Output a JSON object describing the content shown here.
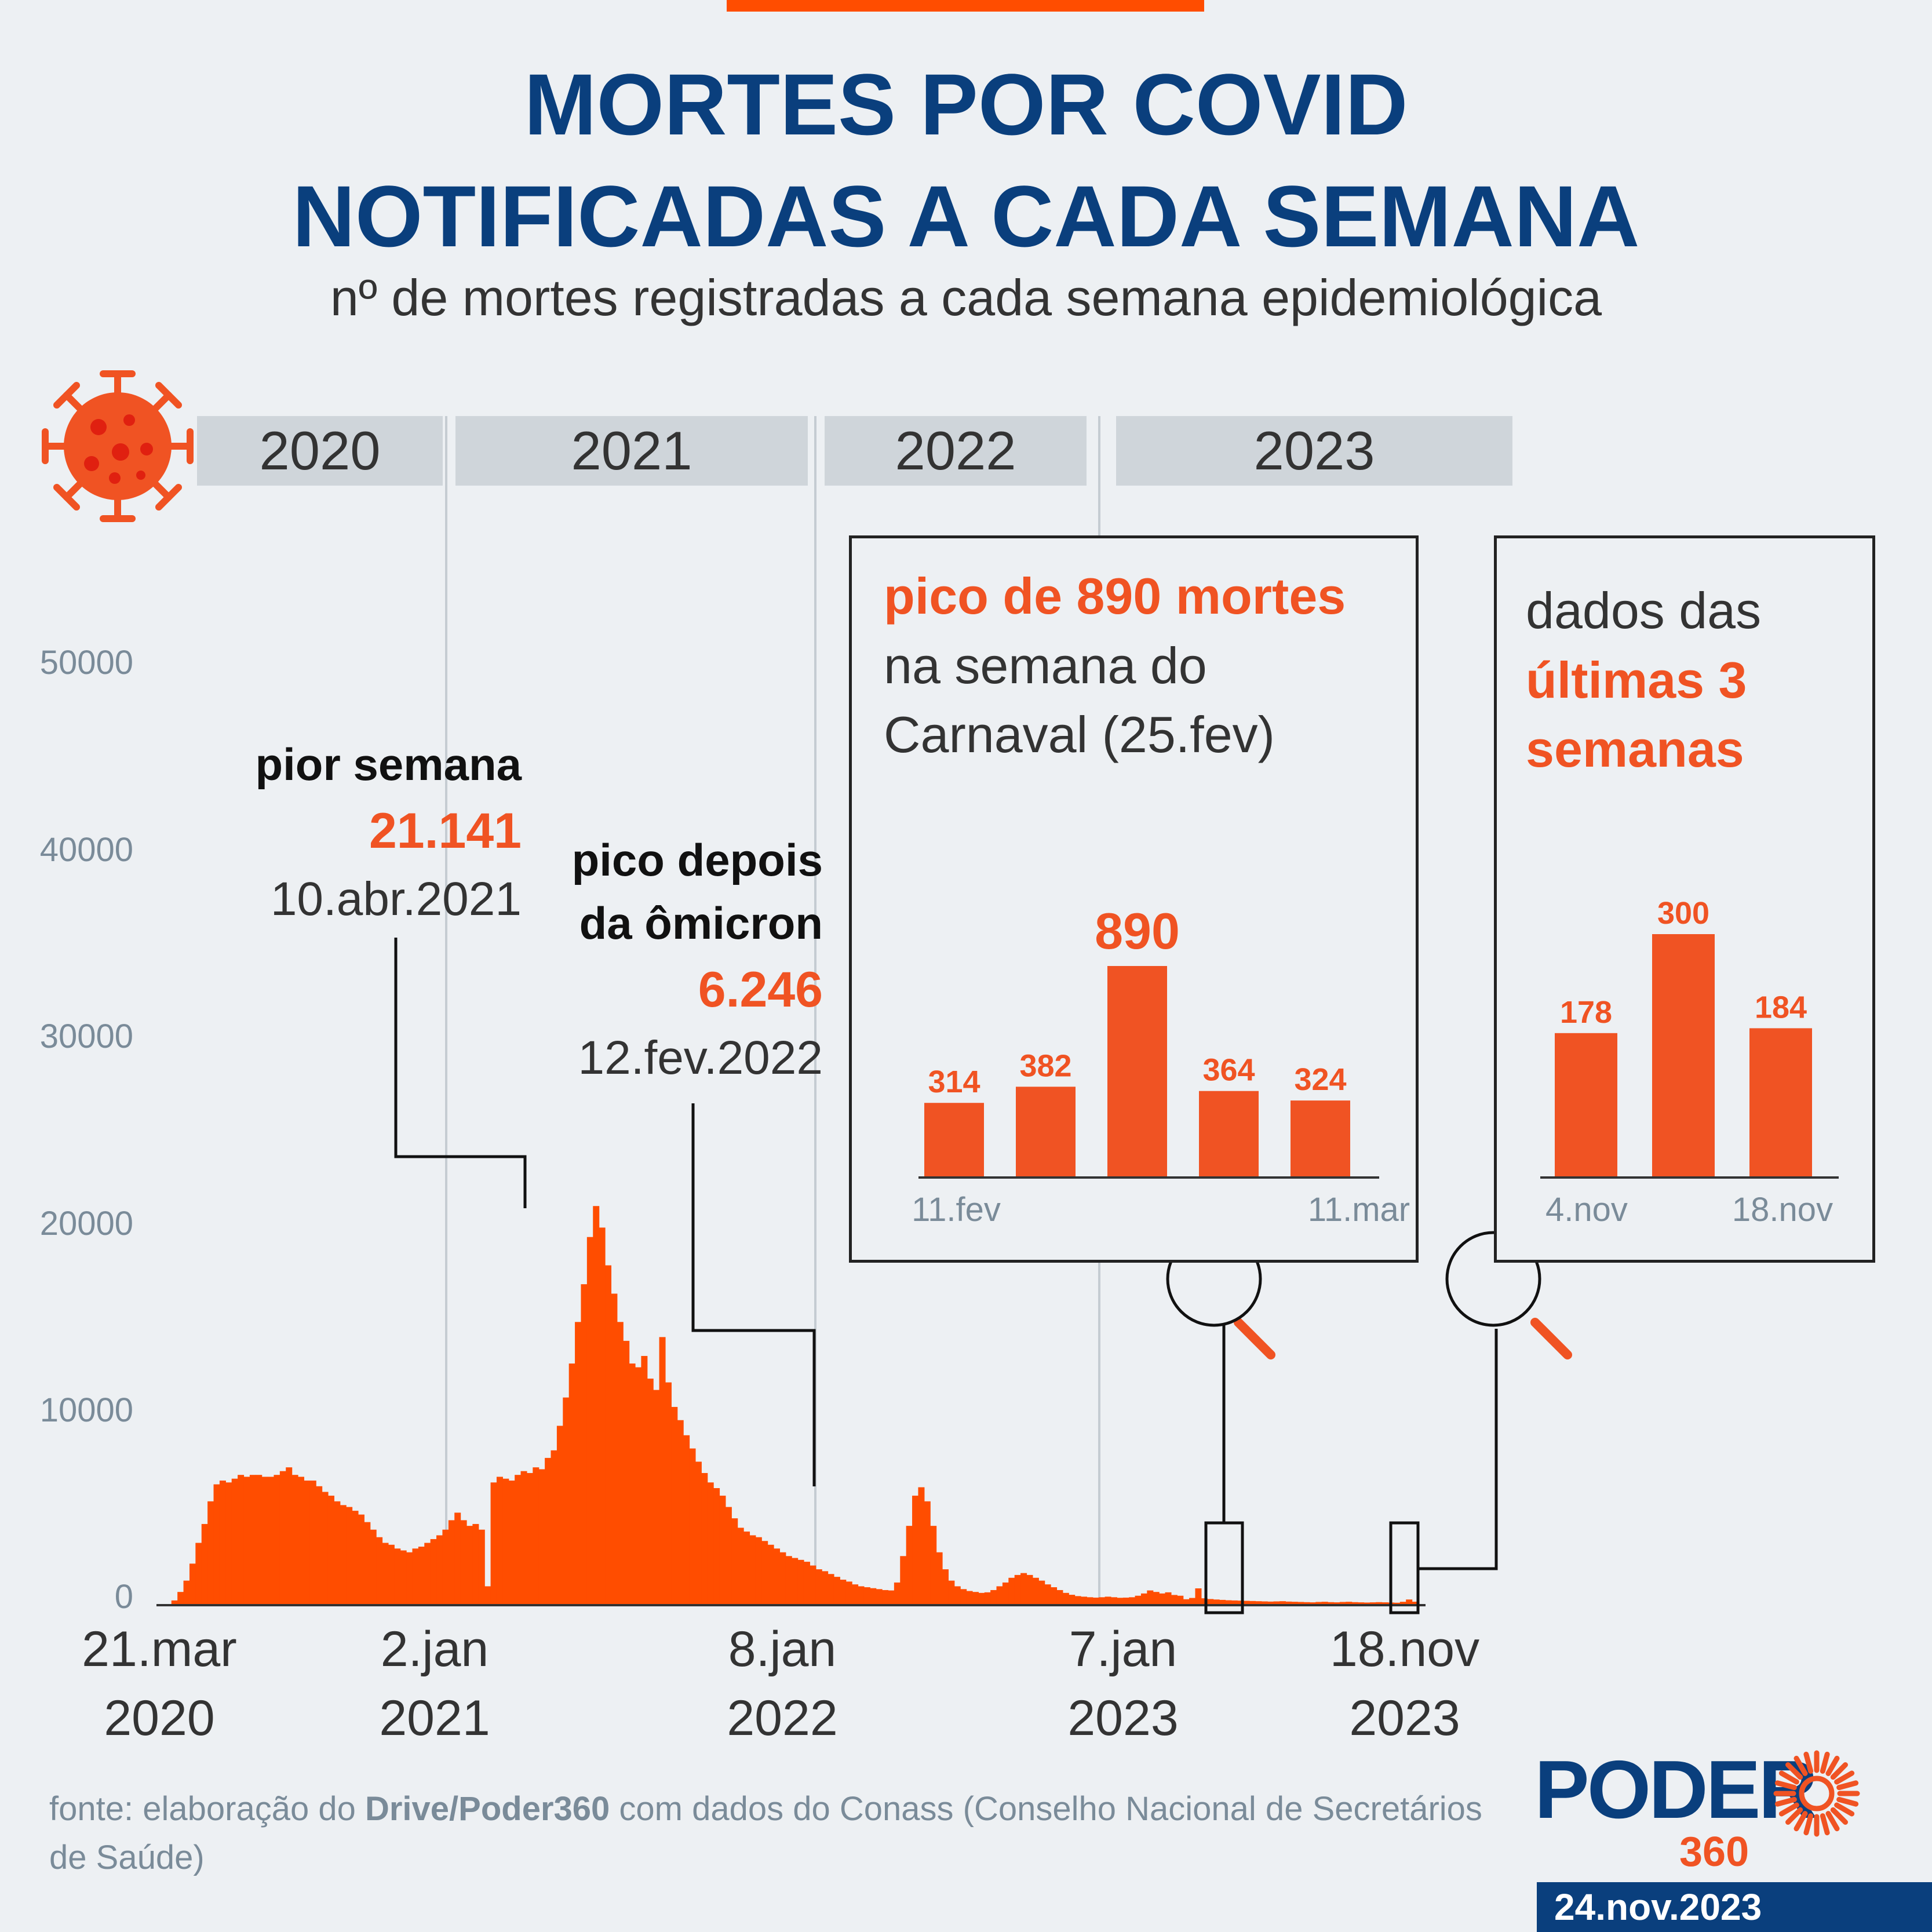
{
  "header": {
    "title_line1": "MORTES POR COVID",
    "title_line2": "NOTIFICADAS A CADA SEMANA",
    "subtitle": "nº de mortes registradas a cada semana epidemiológica"
  },
  "colors": {
    "bars": "#ff4d00",
    "accent": "#f05323",
    "title": "#0a3f7d",
    "band": "#cfd5da"
  },
  "icons": {
    "virus": "coronavirus-icon",
    "magnifier": "magnifier-icon"
  },
  "years": [
    "2020",
    "2021",
    "2022",
    "2023"
  ],
  "y_ticks": [
    "50000",
    "40000",
    "30000",
    "20000",
    "10000",
    "0"
  ],
  "x_labels": [
    {
      "line1": "21.mar",
      "line2": "2020"
    },
    {
      "line1": "2.jan",
      "line2": "2021"
    },
    {
      "line1": "8.jan",
      "line2": "2022"
    },
    {
      "line1": "7.jan",
      "line2": "2023"
    },
    {
      "line1": "18.nov",
      "line2": "2023"
    }
  ],
  "annotations": {
    "worst": {
      "label": "pior semana",
      "value": "21.141",
      "date": "10.abr.2021"
    },
    "omicron": {
      "label_line1": "pico depois",
      "label_line2": "da ômicron",
      "value": "6.246",
      "date": "12.fev.2022"
    }
  },
  "panel_carnaval": {
    "line1": "pico de 890 mortes",
    "line2": "na semana do",
    "line3": "Carnaval (25.fev)",
    "bars": [
      {
        "value": 314,
        "label": "314"
      },
      {
        "value": 382,
        "label": "382"
      },
      {
        "value": 890,
        "label": "890"
      },
      {
        "value": 364,
        "label": "364"
      },
      {
        "value": 324,
        "label": "324"
      }
    ],
    "x_start": "11.fev",
    "x_end": "11.mar"
  },
  "panel_last": {
    "line1": "dados das",
    "line2": "últimas 3",
    "line3": "semanas",
    "bars": [
      {
        "value": 178,
        "label": "178"
      },
      {
        "value": 300,
        "label": "300"
      },
      {
        "value": 184,
        "label": "184"
      }
    ],
    "x_start": "4.nov",
    "x_end": "18.nov"
  },
  "footer": {
    "source_prefix": "fonte: elaboração do ",
    "source_bold": "Drive/Poder360",
    "source_suffix": " com dados do Conass (Conselho Nacional de Secretários de Saúde)",
    "logo": "PODER",
    "logo_sub": "360",
    "date": "24.nov.2023"
  },
  "chart_data": {
    "type": "bar",
    "title": "MORTES POR COVID NOTIFICADAS A CADA SEMANA",
    "subtitle": "nº de mortes registradas a cada semana epidemiológica",
    "x_start": "2020-03-21",
    "x_end": "2023-11-18",
    "ylim": [
      0,
      50000
    ],
    "grid": false,
    "values": [
      20,
      60,
      250,
      700,
      1300,
      2200,
      3300,
      4300,
      5500,
      6400,
      6600,
      6500,
      6700,
      6900,
      6800,
      6900,
      6900,
      6800,
      6800,
      6900,
      7100,
      7300,
      6900,
      6800,
      6600,
      6600,
      6300,
      6000,
      5800,
      5500,
      5300,
      5200,
      5000,
      4800,
      4400,
      4000,
      3600,
      3300,
      3200,
      3000,
      2900,
      2800,
      3000,
      3100,
      3300,
      3500,
      3700,
      4000,
      4500,
      4900,
      4500,
      4200,
      4300,
      4000,
      1000,
      6500,
      6800,
      6700,
      6600,
      6900,
      7100,
      7000,
      7300,
      7200,
      7800,
      8200,
      9500,
      11000,
      12800,
      15000,
      17000,
      19500,
      21141,
      20000,
      18000,
      16500,
      15000,
      14000,
      12800,
      12600,
      13200,
      12000,
      11400,
      14200,
      11800,
      10500,
      9800,
      9000,
      8300,
      7600,
      7000,
      6500,
      6200,
      5800,
      5200,
      4600,
      4100,
      3900,
      3700,
      3600,
      3400,
      3200,
      3000,
      2800,
      2600,
      2500,
      2400,
      2300,
      2100,
      1900,
      1800,
      1650,
      1500,
      1350,
      1250,
      1100,
      1000,
      950,
      900,
      850,
      800,
      780,
      1200,
      2600,
      4200,
      5800,
      6246,
      5500,
      4200,
      2800,
      1900,
      1300,
      1000,
      850,
      750,
      700,
      650,
      680,
      800,
      1000,
      1200,
      1450,
      1600,
      1700,
      1600,
      1450,
      1300,
      1100,
      950,
      800,
      650,
      550,
      480,
      450,
      420,
      400,
      420,
      450,
      420,
      390,
      400,
      420,
      500,
      620,
      780,
      700,
      620,
      680,
      540,
      500,
      314,
      382,
      890,
      364,
      324,
      300,
      280,
      260,
      250,
      240,
      230,
      220,
      210,
      200,
      190,
      200,
      210,
      190,
      180,
      170,
      160,
      150,
      170,
      180,
      160,
      150,
      170,
      180,
      160,
      150,
      140,
      150,
      160,
      150,
      140,
      130,
      178,
      300,
      184
    ],
    "annotations": [
      {
        "text": "pior semana",
        "value": 21141,
        "date": "10.abr.2021"
      },
      {
        "text": "pico depois da ômicron",
        "value": 6246,
        "date": "12.fev.2022"
      }
    ],
    "insets": [
      {
        "title": "pico de 890 mortes na semana do Carnaval (25.fev)",
        "categories": [
          "11.fev",
          "",
          "",
          "",
          "11.mar"
        ],
        "values": [
          314,
          382,
          890,
          364,
          324
        ]
      },
      {
        "title": "dados das últimas 3 semanas",
        "categories": [
          "4.nov",
          "",
          "18.nov"
        ],
        "values": [
          178,
          300,
          184
        ]
      }
    ]
  }
}
